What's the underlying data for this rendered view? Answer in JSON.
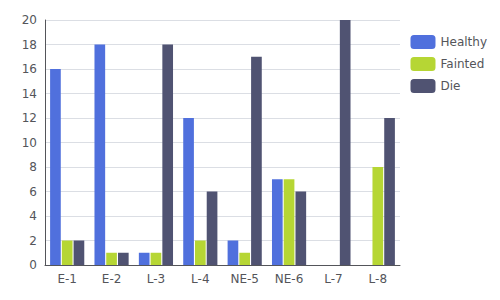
{
  "chart_data": {
    "type": "bar",
    "categories": [
      "E-1",
      "E-2",
      "L-3",
      "L-4",
      "NE-5",
      "NE-6",
      "L-7",
      "L-8"
    ],
    "series": [
      {
        "name": "Healthy",
        "values": [
          16,
          18,
          1,
          12,
          2,
          7,
          0,
          0
        ]
      },
      {
        "name": "Fainted",
        "values": [
          2,
          1,
          1,
          2,
          1,
          7,
          0,
          8
        ]
      },
      {
        "name": "Die",
        "values": [
          2,
          1,
          18,
          6,
          17,
          6,
          20,
          12
        ]
      }
    ],
    "ylim": [
      0,
      20
    ],
    "yticks": [
      0,
      2,
      4,
      6,
      8,
      10,
      12,
      14,
      16,
      18,
      20
    ],
    "grid": true,
    "legend": "right"
  }
}
